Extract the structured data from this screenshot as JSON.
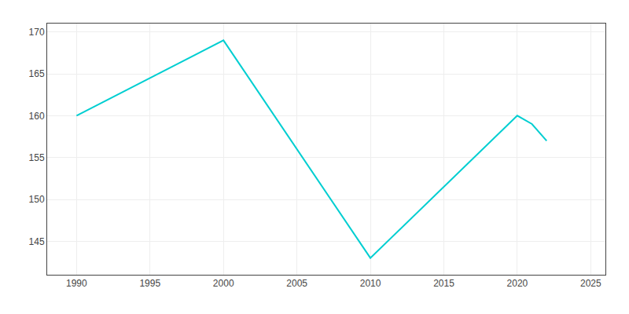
{
  "chart_data": {
    "type": "line",
    "x": [
      1990,
      2000,
      2010,
      2020,
      2021,
      2022
    ],
    "values": [
      160,
      169,
      143,
      160,
      159,
      157
    ],
    "color": "#00CED1",
    "xlim": [
      1988,
      2026
    ],
    "xticks": [
      1990,
      1995,
      2000,
      2005,
      2010,
      2015,
      2020,
      2025
    ],
    "ylim": [
      141,
      171
    ],
    "yticks": [
      145,
      150,
      155,
      160,
      165,
      170
    ],
    "grid": true
  }
}
